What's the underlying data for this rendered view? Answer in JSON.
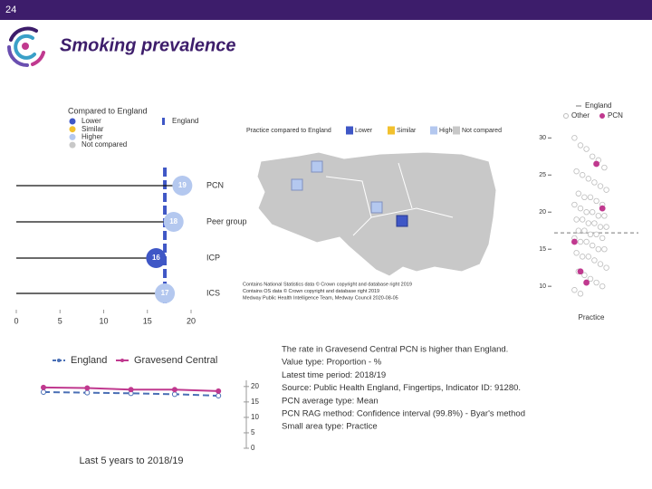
{
  "page": {
    "number": "24",
    "title": "Smoking prevalence"
  },
  "chart_data": [
    {
      "type": "dot",
      "legend_title": "Compared to England",
      "legend": [
        {
          "label": "Lower",
          "color": "#3f57c6"
        },
        {
          "label": "Similar",
          "color": "#f2c12e"
        },
        {
          "label": "Higher",
          "color": "#b4c8ef"
        },
        {
          "label": "Not compared",
          "color": "#c8c8c8"
        }
      ],
      "reference": {
        "name": "England",
        "value": 17,
        "color": "#3f57c6"
      },
      "categories": [
        "PCN",
        "Peer group",
        "ICP",
        "ICS"
      ],
      "values": [
        19,
        18,
        16,
        17
      ],
      "colors": [
        "#b4c8ef",
        "#b4c8ef",
        "#3f57c6",
        "#b4c8ef"
      ],
      "xlim": [
        0,
        20
      ],
      "xticks": [
        0,
        5,
        10,
        15,
        20
      ]
    },
    {
      "type": "strip",
      "xlabel": "Practice",
      "reference": {
        "name": "England",
        "value": 17.2
      },
      "series": [
        {
          "name": "Other",
          "color": "#bdbdbd",
          "values": [
            30,
            29,
            28.5,
            27.5,
            27,
            26,
            25.5,
            25,
            24.5,
            24,
            23.5,
            23,
            22.5,
            22,
            22,
            21.5,
            21,
            21,
            20.5,
            20,
            20,
            19.5,
            19.5,
            19,
            19,
            18.5,
            18.5,
            18,
            18,
            17.5,
            17.5,
            17,
            17,
            16.5,
            16.5,
            16,
            16,
            15.5,
            15,
            15,
            14.5,
            14,
            14,
            13.5,
            13,
            12.5,
            12,
            11.5,
            11,
            10.5,
            10,
            9.5,
            9
          ]
        },
        {
          "name": "PCN",
          "color": "#c0398f",
          "values": [
            26.5,
            20.5,
            16,
            12,
            10.5
          ]
        }
      ],
      "ylim": [
        7.7,
        31.5
      ],
      "yticks": [
        10,
        15,
        20,
        25,
        30
      ]
    },
    {
      "type": "line",
      "title": "Last 5 years to 2018/19",
      "categories": [
        null,
        null,
        null,
        null,
        null
      ],
      "series": [
        {
          "name": "England",
          "color": "#4a6fb5",
          "dashed": true,
          "axis": "y2",
          "values": [
            18.2,
            18,
            17.8,
            17.5,
            17
          ]
        },
        {
          "name": "Gravesend Central",
          "color": "#c0398f",
          "dashed": false,
          "axis": "y2",
          "values": [
            19.7,
            19.5,
            19,
            19,
            18.5
          ]
        }
      ],
      "y2lim": [
        0,
        22
      ],
      "y2ticks": [
        0,
        5,
        10,
        15,
        20
      ]
    }
  ],
  "map": {
    "legend_title": "Practice compared to England",
    "legend": [
      {
        "label": "Lower",
        "color": "#3f57c6"
      },
      {
        "label": "Similar",
        "color": "#f2c12e"
      },
      {
        "label": "Higher",
        "color": "#b4c8ef"
      },
      {
        "label": "Not compared",
        "color": "#c8c8c8"
      }
    ],
    "attribution": [
      "Contains National Statistics data © Crown copyright and database right 2019",
      "Contains OS data © Crown copyright and database right 2019",
      "Medway Public Health Intelligence Team, Medway Council 2020-08-05"
    ]
  },
  "notes": [
    "The rate in Gravesend Central PCN is higher than England.",
    "Value type: Proportion - %",
    "Latest time period: 2018/19",
    "Source: Public Health England, Fingertips, Indicator ID: 91280.",
    "PCN average type: Mean",
    "PCN RAG method: Confidence interval (99.8%) - Byar's method",
    "Small area type: Practice"
  ]
}
